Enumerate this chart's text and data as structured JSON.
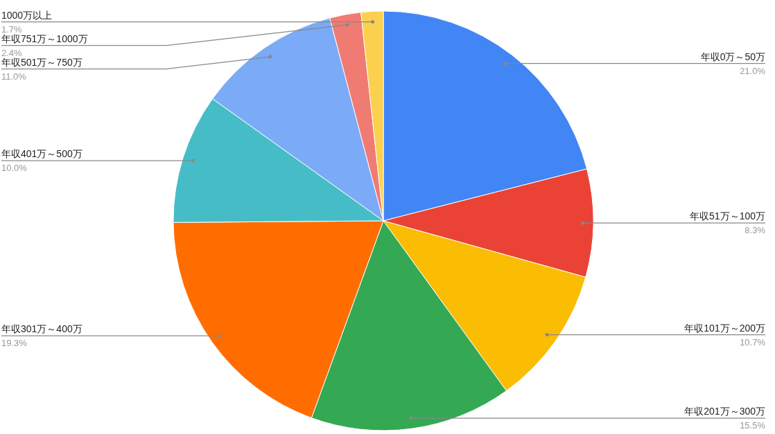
{
  "chart_data": {
    "type": "pie",
    "categories": [
      "年収0万～50万",
      "年収51万～100万",
      "年収101万～200万",
      "年収201万～300万",
      "年収301万～400万",
      "年収401万～500万",
      "年収501万～750万",
      "年収751万～1000万",
      "1000万以上"
    ],
    "values": [
      21.0,
      8.3,
      10.7,
      15.5,
      19.3,
      10.0,
      11.0,
      2.4,
      1.7
    ],
    "value_labels": [
      "21.0%",
      "8.3%",
      "10.7%",
      "15.5%",
      "19.3%",
      "10.0%",
      "11.0%",
      "2.4%",
      "1.7%"
    ],
    "colors": [
      "#4285f4",
      "#ea4335",
      "#fbbc04",
      "#34a853",
      "#ff6d01",
      "#46bdc6",
      "#7baaf7",
      "#f07b72",
      "#fcd04f"
    ]
  }
}
